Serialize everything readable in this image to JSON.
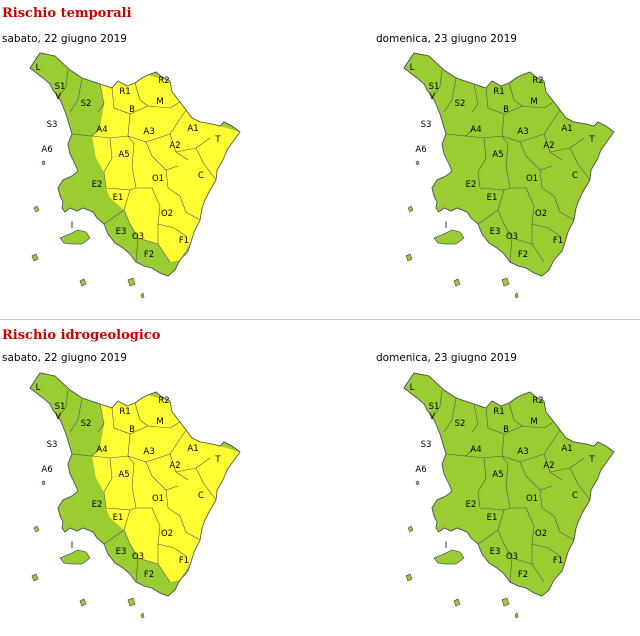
{
  "sections": [
    {
      "title": "Rischio temporali",
      "days": [
        {
          "label": "sabato, 22 giugno 2019",
          "yellow_zones": [
            "R1",
            "R2",
            "B",
            "M",
            "A1",
            "A2",
            "A3",
            "A4",
            "A5",
            "O1",
            "O2",
            "C",
            "T",
            "E1",
            "F1"
          ]
        },
        {
          "label": "domenica, 23 giugno 2019",
          "yellow_zones": []
        }
      ]
    },
    {
      "title": "Rischio idrogeologico",
      "days": [
        {
          "label": "sabato, 22 giugno 2019",
          "yellow_zones": [
            "R1",
            "R2",
            "B",
            "M",
            "A1",
            "A2",
            "A3",
            "A4",
            "A5",
            "O1",
            "O2",
            "C",
            "T",
            "E1",
            "F1"
          ]
        },
        {
          "label": "domenica, 23 giugno 2019",
          "yellow_zones": []
        }
      ]
    }
  ],
  "zone_labels": [
    "L",
    "S1",
    "V",
    "S2",
    "S3",
    "A6",
    "R1",
    "R2",
    "B",
    "M",
    "A4",
    "A3",
    "A1",
    "T",
    "A2",
    "A5",
    "O1",
    "C",
    "E2",
    "E1",
    "O2",
    "I",
    "E3",
    "O3",
    "F1",
    "F2"
  ],
  "colors": {
    "green": "#9ACD32",
    "yellow": "#FFFF33",
    "border": "#555555",
    "title": "#CC0000"
  }
}
